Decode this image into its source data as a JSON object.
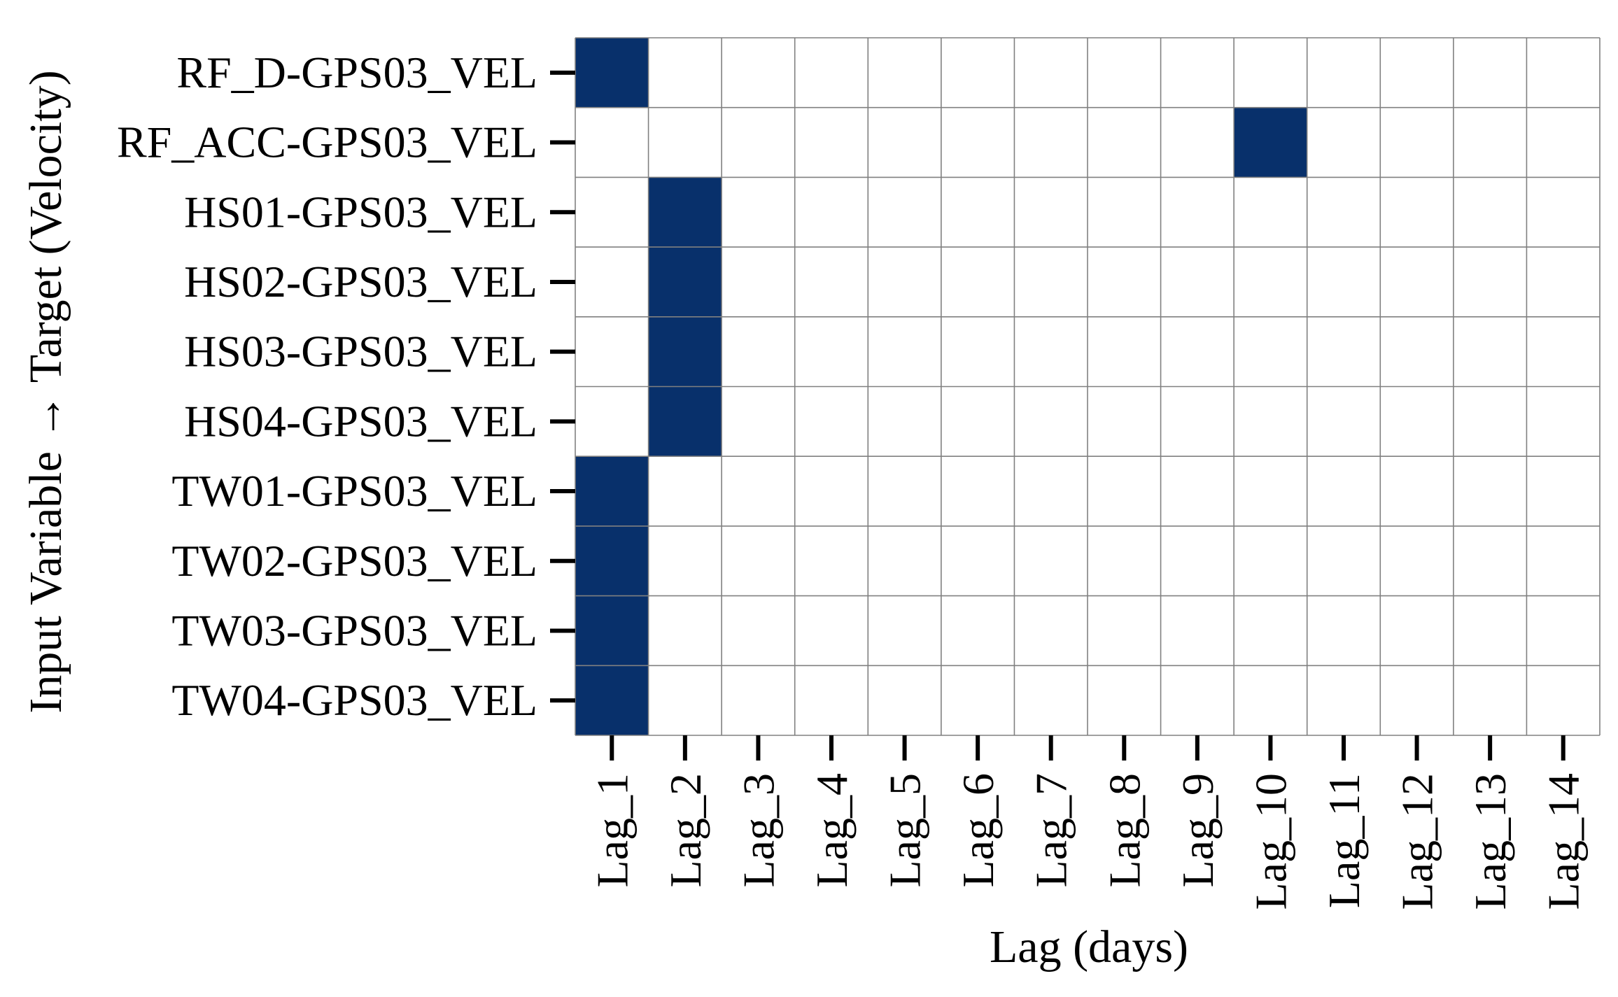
{
  "chart_data": {
    "type": "heatmap",
    "title": "",
    "xlabel": "Lag (days)",
    "ylabel": "Input Variable → Target (Velocity)",
    "x_categories": [
      "Lag_1",
      "Lag_2",
      "Lag_3",
      "Lag_4",
      "Lag_5",
      "Lag_6",
      "Lag_7",
      "Lag_8",
      "Lag_9",
      "Lag_10",
      "Lag_11",
      "Lag_12",
      "Lag_13",
      "Lag_14"
    ],
    "y_categories": [
      "RF_D-GPS03_VEL",
      "RF_ACC-GPS03_VEL",
      "HS01-GPS03_VEL",
      "HS02-GPS03_VEL",
      "HS03-GPS03_VEL",
      "HS04-GPS03_VEL",
      "TW01-GPS03_VEL",
      "TW02-GPS03_VEL",
      "TW03-GPS03_VEL",
      "TW04-GPS03_VEL"
    ],
    "values": [
      [
        1,
        0,
        0,
        0,
        0,
        0,
        0,
        0,
        0,
        0,
        0,
        0,
        0,
        0
      ],
      [
        0,
        0,
        0,
        0,
        0,
        0,
        0,
        0,
        0,
        1,
        0,
        0,
        0,
        0
      ],
      [
        0,
        1,
        0,
        0,
        0,
        0,
        0,
        0,
        0,
        0,
        0,
        0,
        0,
        0
      ],
      [
        0,
        1,
        0,
        0,
        0,
        0,
        0,
        0,
        0,
        0,
        0,
        0,
        0,
        0
      ],
      [
        0,
        1,
        0,
        0,
        0,
        0,
        0,
        0,
        0,
        0,
        0,
        0,
        0,
        0
      ],
      [
        0,
        1,
        0,
        0,
        0,
        0,
        0,
        0,
        0,
        0,
        0,
        0,
        0,
        0
      ],
      [
        1,
        0,
        0,
        0,
        0,
        0,
        0,
        0,
        0,
        0,
        0,
        0,
        0,
        0
      ],
      [
        1,
        0,
        0,
        0,
        0,
        0,
        0,
        0,
        0,
        0,
        0,
        0,
        0,
        0
      ],
      [
        1,
        0,
        0,
        0,
        0,
        0,
        0,
        0,
        0,
        0,
        0,
        0,
        0,
        0
      ],
      [
        1,
        0,
        0,
        0,
        0,
        0,
        0,
        0,
        0,
        0,
        0,
        0,
        0,
        0
      ]
    ],
    "colors": {
      "selected": "#08306b",
      "unselected": "#ffffff",
      "grid": "#808080"
    },
    "grid": true,
    "legend": "none"
  }
}
